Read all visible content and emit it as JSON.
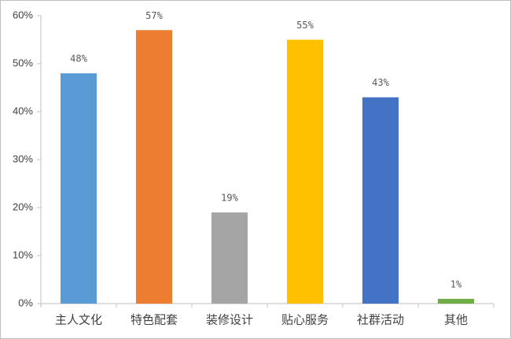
{
  "chart_data": {
    "type": "bar",
    "categories": [
      "主人文化",
      "特色配套",
      "装修设计",
      "贴心服务",
      "社群活动",
      "其他"
    ],
    "values": [
      48,
      57,
      19,
      55,
      43,
      1
    ],
    "value_labels": [
      "48%",
      "57%",
      "19%",
      "55%",
      "43%",
      "1%"
    ],
    "colors": [
      "#5b9bd5",
      "#ed7d31",
      "#a5a5a5",
      "#ffc000",
      "#4472c4",
      "#70ad47"
    ],
    "ylim": [
      0,
      60
    ],
    "yticks": [
      {
        "value": 0,
        "label": "0%"
      },
      {
        "value": 10,
        "label": "10%"
      },
      {
        "value": 20,
        "label": "20%"
      },
      {
        "value": 30,
        "label": "30%"
      },
      {
        "value": 40,
        "label": "40%"
      },
      {
        "value": 50,
        "label": "50%"
      },
      {
        "value": 60,
        "label": "60%"
      }
    ],
    "grid": false
  }
}
